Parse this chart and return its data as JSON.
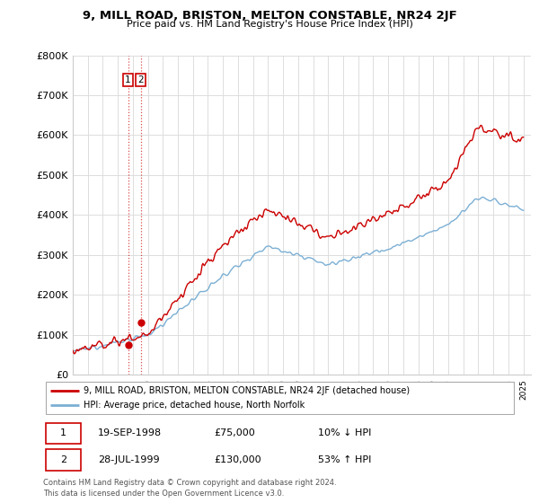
{
  "title": "9, MILL ROAD, BRISTON, MELTON CONSTABLE, NR24 2JF",
  "subtitle": "Price paid vs. HM Land Registry's House Price Index (HPI)",
  "ylabel_ticks": [
    "£0",
    "£100K",
    "£200K",
    "£300K",
    "£400K",
    "£500K",
    "£600K",
    "£700K",
    "£800K"
  ],
  "ylim": [
    0,
    800000
  ],
  "xlim_start": 1995.0,
  "xlim_end": 2025.5,
  "hpi_color": "#7bafd4",
  "property_color": "#cc0000",
  "transaction1_year": 1998.72,
  "transaction1_price": 75000,
  "transaction2_year": 1999.56,
  "transaction2_price": 130000,
  "legend_property": "9, MILL ROAD, BRISTON, MELTON CONSTABLE, NR24 2JF (detached house)",
  "legend_hpi": "HPI: Average price, detached house, North Norfolk",
  "table_row1": [
    "1",
    "19-SEP-1998",
    "£75,000",
    "10% ↓ HPI"
  ],
  "table_row2": [
    "2",
    "28-JUL-1999",
    "£130,000",
    "53% ↑ HPI"
  ],
  "footer": "Contains HM Land Registry data © Crown copyright and database right 2024.\nThis data is licensed under the Open Government Licence v3.0.",
  "grid_color": "#dddddd"
}
